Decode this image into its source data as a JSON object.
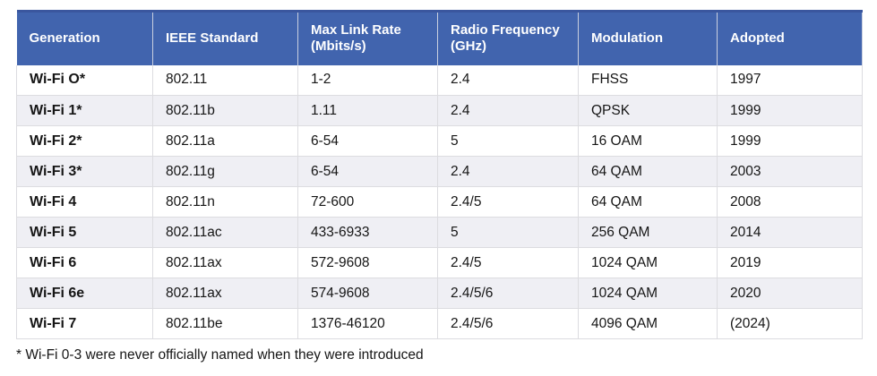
{
  "chart_data": {
    "type": "table",
    "title": "",
    "columns": [
      "Generation",
      "IEEE Standard",
      "Max Link Rate (Mbits/s)",
      "Radio Frequency (GHz)",
      "Modulation",
      "Adopted"
    ],
    "rows": [
      {
        "generation": "Wi-Fi O*",
        "standard": "802.11",
        "max_link_rate": "1-2",
        "radio_frequency": "2.4",
        "modulation": "FHSS",
        "adopted": "1997"
      },
      {
        "generation": "Wi-Fi 1*",
        "standard": "802.11b",
        "max_link_rate": "1.11",
        "radio_frequency": "2.4",
        "modulation": "QPSK",
        "adopted": "1999"
      },
      {
        "generation": "Wi-Fi 2*",
        "standard": "802.11a",
        "max_link_rate": "6-54",
        "radio_frequency": "5",
        "modulation": "16 OAM",
        "adopted": "1999"
      },
      {
        "generation": "Wi-Fi 3*",
        "standard": "802.11g",
        "max_link_rate": "6-54",
        "radio_frequency": "2.4",
        "modulation": "64 QAM",
        "adopted": "2003"
      },
      {
        "generation": "Wi-Fi 4",
        "standard": "802.11n",
        "max_link_rate": "72-600",
        "radio_frequency": "2.4/5",
        "modulation": "64 QAM",
        "adopted": "2008"
      },
      {
        "generation": "Wi-Fi 5",
        "standard": "802.11ac",
        "max_link_rate": "433-6933",
        "radio_frequency": "5",
        "modulation": "256 QAM",
        "adopted": "2014"
      },
      {
        "generation": "Wi-Fi 6",
        "standard": "802.11ax",
        "max_link_rate": "572-9608",
        "radio_frequency": "2.4/5",
        "modulation": "1024 QAM",
        "adopted": "2019"
      },
      {
        "generation": "Wi-Fi 6e",
        "standard": "802.11ax",
        "max_link_rate": "574-9608",
        "radio_frequency": "2.4/5/6",
        "modulation": "1024 QAM",
        "adopted": "2020"
      },
      {
        "generation": "Wi-Fi 7",
        "standard": "802.11be",
        "max_link_rate": "1376-46120",
        "radio_frequency": "2.4/5/6",
        "modulation": "4096 QAM",
        "adopted": "(2024)"
      }
    ],
    "footnote": "* Wi-Fi 0-3 were never officially named when they were introduced",
    "layout_hints": {
      "striped": true,
      "stripe_rows": "even",
      "header_position": "top"
    }
  },
  "colors": {
    "header_bg": "#4164AE",
    "header_text": "#FFFFFF",
    "header_top_border": "#3A569E",
    "row_stripe": "#EFEFF4",
    "grid_border": "#DCDCE0",
    "body_text": "#161616"
  }
}
